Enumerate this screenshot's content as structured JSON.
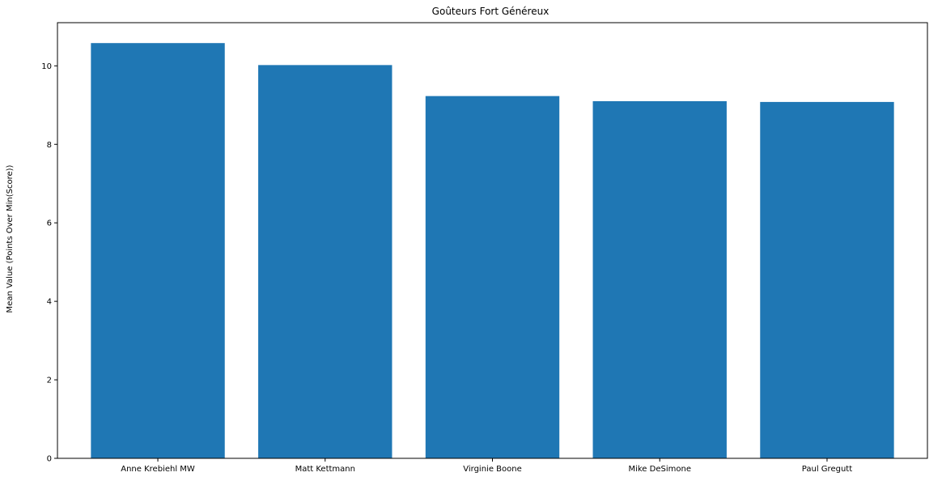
{
  "chart_data": {
    "type": "bar",
    "title": "Goûteurs Fort Généreux",
    "xlabel": "",
    "ylabel": "Mean Value (Points Over Min(Score))",
    "categories": [
      "Anne Krebiehl MW",
      "Matt Kettmann",
      "Virginie Boone",
      "Mike DeSimone",
      "Paul Gregutt"
    ],
    "values": [
      10.58,
      10.02,
      9.23,
      9.1,
      9.08
    ],
    "ylim": [
      0,
      11.1
    ],
    "yticks": [
      0,
      2,
      4,
      6,
      8,
      10
    ],
    "grid": false,
    "legend": "none",
    "bar_color": "#1f77b4"
  }
}
